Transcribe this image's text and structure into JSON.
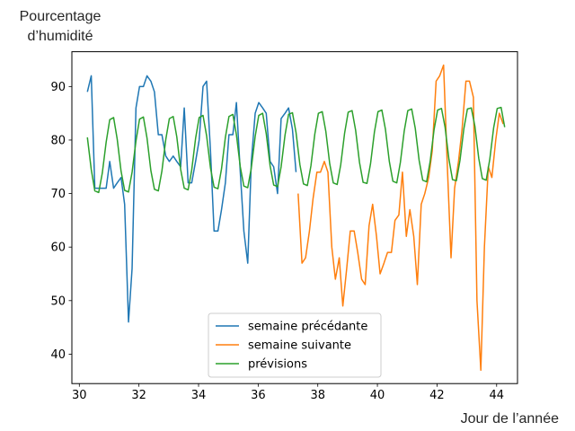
{
  "chart_data": {
    "type": "line",
    "ylabel_line1": "Pourcentage",
    "ylabel_line2": "d’humidité",
    "xlabel": "Jour de l’année",
    "xlim": [
      29.75,
      44.7
    ],
    "ylim": [
      34.5,
      96.5
    ],
    "xticks": [
      30,
      32,
      34,
      36,
      38,
      40,
      42,
      44
    ],
    "yticks": [
      40,
      50,
      60,
      70,
      80,
      90
    ],
    "legend_position": "lower-center",
    "grid": false,
    "series": [
      {
        "name": "semaine précédante",
        "color": "#1f77b4",
        "x": [
          30.27,
          30.4,
          30.52,
          30.65,
          30.77,
          30.9,
          31.02,
          31.15,
          31.27,
          31.4,
          31.52,
          31.65,
          31.77,
          31.9,
          32.02,
          32.15,
          32.27,
          32.4,
          32.52,
          32.65,
          32.77,
          32.9,
          33.02,
          33.15,
          33.27,
          33.4,
          33.52,
          33.65,
          33.77,
          33.9,
          34.02,
          34.15,
          34.27,
          34.4,
          34.52,
          34.65,
          34.77,
          34.9,
          35.02,
          35.15,
          35.27,
          35.4,
          35.52,
          35.65,
          35.77,
          35.9,
          36.02,
          36.15,
          36.27,
          36.4,
          36.52,
          36.65,
          36.77,
          36.9,
          37.02,
          37.15,
          37.27
        ],
        "y": [
          89,
          92,
          71,
          71,
          71,
          71,
          76,
          71,
          72,
          73,
          68,
          46,
          56,
          86,
          90,
          90,
          92,
          91,
          89,
          81,
          81,
          77,
          76,
          77,
          76,
          75,
          86,
          72,
          72,
          76,
          80,
          90,
          91,
          78,
          63,
          63,
          67,
          72,
          81,
          81,
          87,
          74,
          63,
          57,
          76,
          85,
          87,
          86,
          85,
          76,
          75,
          70,
          84,
          85,
          86,
          82,
          74
        ]
      },
      {
        "name": "semaine suivante",
        "color": "#ff7f0e",
        "x": [
          37.34,
          37.47,
          37.59,
          37.72,
          37.84,
          37.97,
          38.09,
          38.22,
          38.34,
          38.47,
          38.59,
          38.72,
          38.84,
          38.97,
          39.09,
          39.22,
          39.34,
          39.47,
          39.59,
          39.72,
          39.84,
          39.97,
          40.09,
          40.22,
          40.34,
          40.47,
          40.59,
          40.72,
          40.84,
          40.97,
          41.09,
          41.22,
          41.34,
          41.47,
          41.59,
          41.72,
          41.84,
          41.97,
          42.09,
          42.22,
          42.34,
          42.47,
          42.59,
          42.72,
          42.84,
          42.97,
          43.09,
          43.22,
          43.34,
          43.47,
          43.59,
          43.72,
          43.84,
          43.97,
          44.09,
          44.22
        ],
        "y": [
          70,
          57,
          58,
          63,
          69,
          74,
          74,
          76,
          74,
          60,
          54,
          58,
          49,
          56,
          63,
          63,
          59,
          54,
          53,
          64,
          68,
          62,
          55,
          57,
          59,
          59,
          65,
          66,
          74,
          62,
          67,
          62,
          53,
          68,
          70,
          73,
          78,
          91,
          92,
          94,
          76,
          58,
          71,
          76,
          82,
          91,
          91,
          88,
          50,
          37,
          60,
          75,
          73,
          80,
          85,
          83
        ]
      },
      {
        "name": "prévisions",
        "color": "#2ca02c",
        "x": [
          30.27,
          30.4,
          30.52,
          30.65,
          30.77,
          30.9,
          31.02,
          31.15,
          31.27,
          31.4,
          31.52,
          31.65,
          31.77,
          31.9,
          32.02,
          32.15,
          32.27,
          32.4,
          32.52,
          32.65,
          32.77,
          32.9,
          33.02,
          33.15,
          33.27,
          33.4,
          33.52,
          33.65,
          33.77,
          33.9,
          34.02,
          34.15,
          34.27,
          34.4,
          34.52,
          34.65,
          34.77,
          34.9,
          35.02,
          35.15,
          35.27,
          35.4,
          35.52,
          35.65,
          35.77,
          35.9,
          36.02,
          36.15,
          36.27,
          36.4,
          36.52,
          36.65,
          36.77,
          36.9,
          37.02,
          37.15,
          37.27,
          37.4,
          37.52,
          37.65,
          37.77,
          37.9,
          38.02,
          38.15,
          38.27,
          38.4,
          38.52,
          38.65,
          38.77,
          38.9,
          39.02,
          39.15,
          39.27,
          39.4,
          39.52,
          39.65,
          39.77,
          39.9,
          40.02,
          40.15,
          40.27,
          40.4,
          40.52,
          40.65,
          40.77,
          40.9,
          41.02,
          41.15,
          41.27,
          41.4,
          41.52,
          41.65,
          41.77,
          41.9,
          42.02,
          42.15,
          42.27,
          42.4,
          42.52,
          42.65,
          42.77,
          42.9,
          43.02,
          43.15,
          43.27,
          43.4,
          43.52,
          43.65,
          43.77,
          43.9,
          44.02,
          44.15,
          44.27
        ],
        "y": [
          80.5,
          74.5,
          70.5,
          70.2,
          73.8,
          79.6,
          83.8,
          84.2,
          80.2,
          74.2,
          70.6,
          70.3,
          74,
          79.8,
          83.9,
          84.3,
          80.4,
          74.3,
          70.8,
          70.5,
          74.2,
          80.1,
          84,
          84.4,
          80.6,
          74.5,
          71,
          70.7,
          74.4,
          80.3,
          84.2,
          84.6,
          80.8,
          74.8,
          71.2,
          70.9,
          74.6,
          80.5,
          84.4,
          84.8,
          81,
          75,
          71.4,
          71.1,
          74.8,
          80.7,
          84.6,
          85,
          81.2,
          75.2,
          71.6,
          71.3,
          75,
          80.9,
          84.8,
          85.1,
          81.4,
          75.4,
          71.8,
          71.5,
          75.2,
          81.1,
          85,
          85.3,
          81.6,
          75.6,
          72,
          71.7,
          75.4,
          81.3,
          85.2,
          85.5,
          81.8,
          75.8,
          72.1,
          71.9,
          75.6,
          81.5,
          85.3,
          85.6,
          82,
          76,
          72.3,
          72,
          75.8,
          81.7,
          85.5,
          85.8,
          82.2,
          76.2,
          72.5,
          72.2,
          76,
          81.9,
          85.6,
          85.9,
          82.4,
          76.4,
          72.6,
          72.4,
          76.2,
          82.1,
          85.8,
          86,
          82.6,
          76.6,
          72.8,
          72.5,
          76.4,
          82.3,
          85.9,
          86.1,
          82.4
        ]
      }
    ]
  }
}
